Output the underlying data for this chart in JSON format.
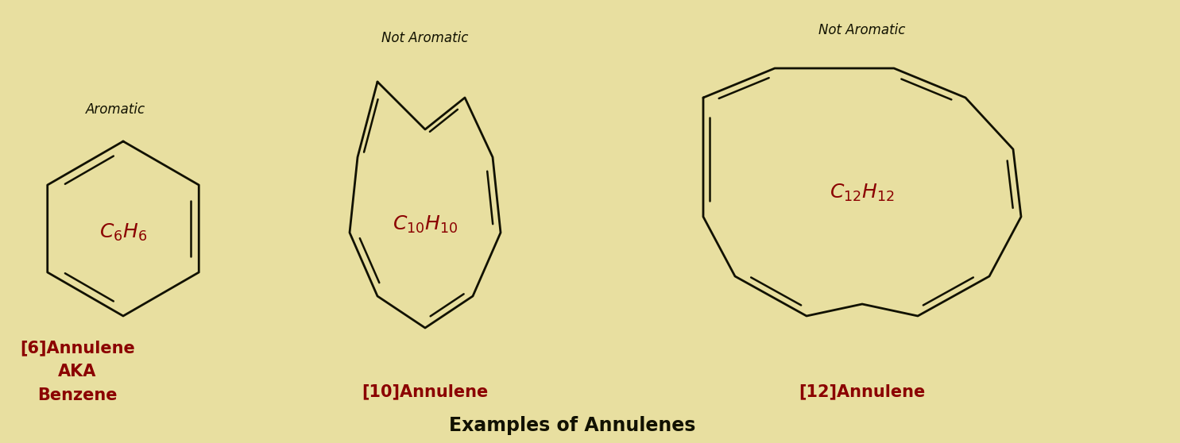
{
  "background_color": "#e8dfa0",
  "line_color": "#111100",
  "formula_color": "#8b0000",
  "title_color": "#111100",
  "aromatic_label": "Aromatic",
  "not_aromatic_label": "Not Aromatic",
  "benzene_label": "[6]Annulene\nAKA\nBenzene",
  "annulene10_label": "[10]Annulene",
  "annulene12_label": "[12]Annulene",
  "bottom_text": "Examples of Annulenes",
  "figsize": [
    14.85,
    5.58
  ],
  "dpi": 100
}
